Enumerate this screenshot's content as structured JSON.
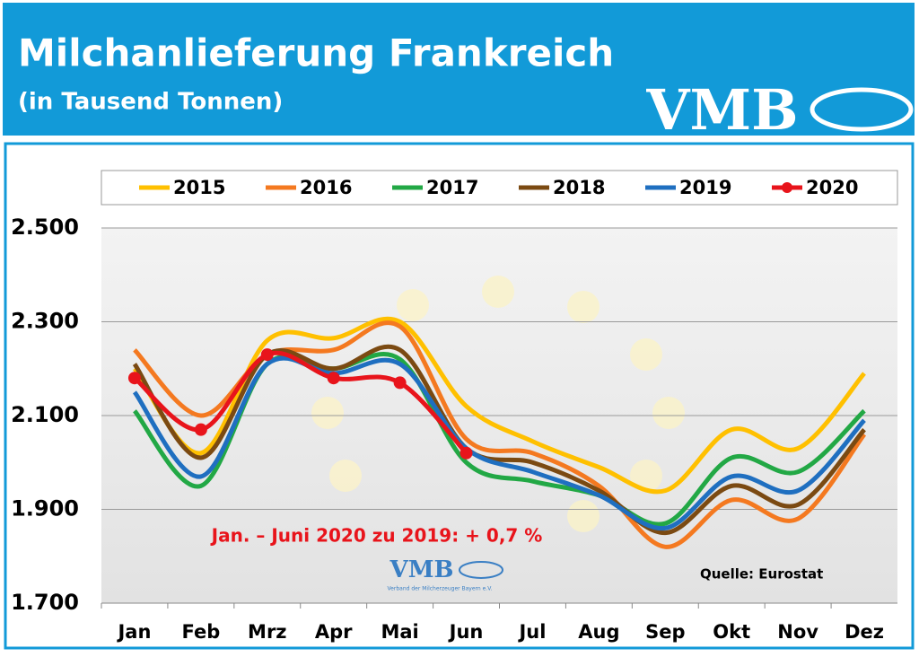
{
  "header": {
    "title": "Milchanlieferung Frankreich",
    "subtitle": "(in Tausend Tonnen)",
    "logo": "VMB"
  },
  "chart_data": {
    "type": "line",
    "categories": [
      "Jan",
      "Feb",
      "Mrz",
      "Apr",
      "Mai",
      "Jun",
      "Jul",
      "Aug",
      "Sep",
      "Okt",
      "Nov",
      "Dez"
    ],
    "series": [
      {
        "name": "2015",
        "color": "#ffc000",
        "values": [
          2200,
          2020,
          2260,
          2265,
          2300,
          2120,
          2045,
          1990,
          1940,
          2070,
          2030,
          2190
        ]
      },
      {
        "name": "2016",
        "color": "#f47920",
        "values": [
          2240,
          2100,
          2230,
          2240,
          2290,
          2050,
          2020,
          1950,
          1820,
          1920,
          1880,
          2060
        ]
      },
      {
        "name": "2017",
        "color": "#22a845",
        "values": [
          2110,
          1950,
          2210,
          2200,
          2220,
          2000,
          1960,
          1930,
          1870,
          2010,
          1980,
          2110
        ]
      },
      {
        "name": "2018",
        "color": "#7b4a12",
        "values": [
          2210,
          2010,
          2230,
          2200,
          2240,
          2030,
          2000,
          1940,
          1850,
          1950,
          1910,
          2070
        ]
      },
      {
        "name": "2019",
        "color": "#1f6fc0",
        "values": [
          2150,
          1970,
          2210,
          2190,
          2210,
          2030,
          1980,
          1930,
          1860,
          1970,
          1940,
          2090
        ]
      },
      {
        "name": "2020",
        "color": "#e8141b",
        "markers": true,
        "values": [
          2180,
          2070,
          2230,
          2180,
          2170,
          2020,
          null,
          null,
          null,
          null,
          null,
          null
        ]
      }
    ],
    "ylim": [
      1700,
      2500
    ],
    "yticks": [
      {
        "value": 1700,
        "label": "1.700"
      },
      {
        "value": 1900,
        "label": "1.900"
      },
      {
        "value": 2100,
        "label": "2.100"
      },
      {
        "value": 2300,
        "label": "2.300"
      },
      {
        "value": 2500,
        "label": "2.500"
      }
    ],
    "grid": true,
    "legend": "top",
    "annotation": "Jan. – Juni 2020 zu 2019:  + 0,7 %",
    "source": "Quelle: Eurostat",
    "logo_text": "VMB",
    "logo_subtext": "Verband der Milcherzeuger Bayern e.V."
  }
}
